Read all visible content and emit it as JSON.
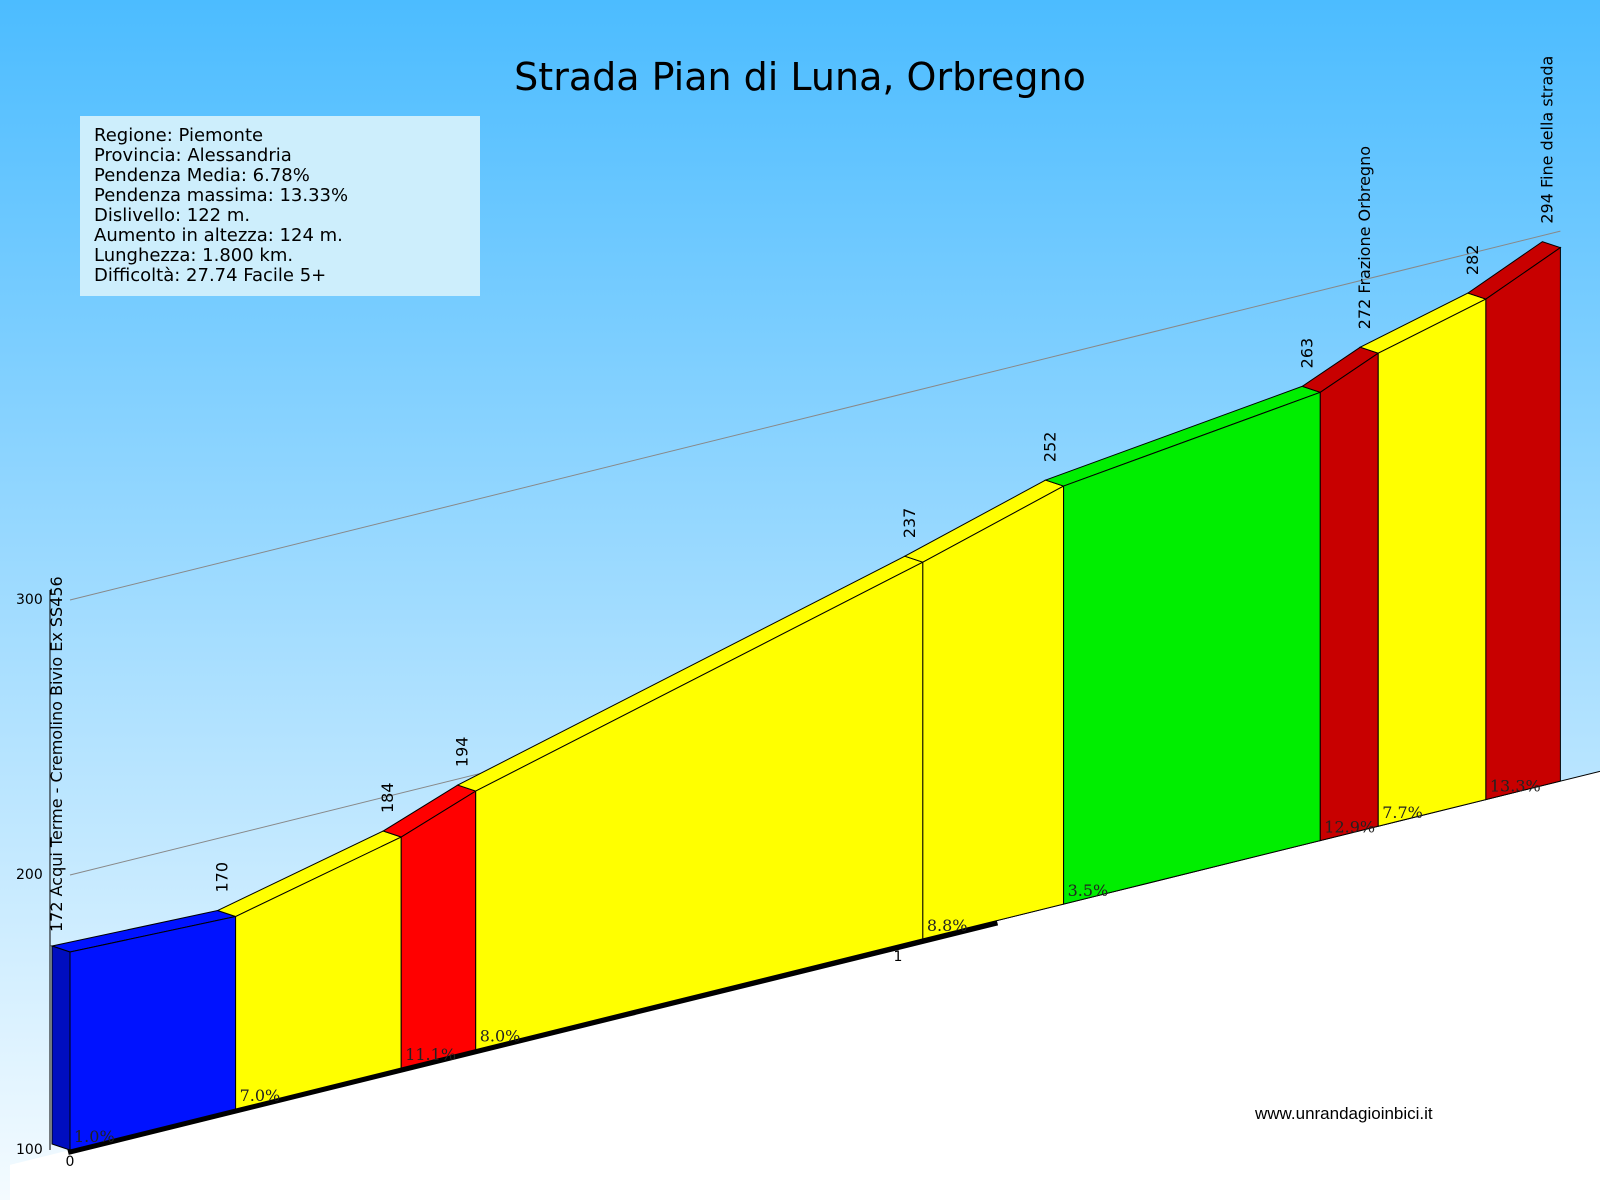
{
  "title": "Strada Pian di Luna, Orbregno",
  "info": [
    "Regione: Piemonte",
    "Provincia: Alessandria",
    "Pendenza Media: 6.78%",
    "Pendenza massima: 13.33%",
    "Dislivello:   122 m.",
    "Aumento in altezza:   124 m.",
    "Lunghezza:  1.800 km.",
    "Difficoltà: 27.74 Facile 5+"
  ],
  "website": "www.unrandagioinbici.it",
  "colors": {
    "sky_top": "#4cbcff",
    "sky_bottom": "#f4fbff",
    "blue": "#0012ff",
    "yellow": "#ffff00",
    "red": "#ff0000",
    "darkred": "#c80000",
    "green": "#00ee00"
  },
  "chart_data": {
    "type": "area",
    "title": "Strada Pian di Luna, Orbregno",
    "y_ticks": [
      "100",
      "200",
      "300"
    ],
    "ylim": [
      100,
      300
    ],
    "x_ticks": [
      "0",
      "1"
    ],
    "points": [
      {
        "label": "172  Acqui Terme - Cremolino Bivio Ex SS456",
        "altitude": 172,
        "pos": 0
      },
      {
        "label": "170",
        "altitude": 170,
        "pos": 0.2
      },
      {
        "label": "184",
        "altitude": 184,
        "pos": 0.4
      },
      {
        "label": "194",
        "altitude": 194,
        "pos": 0.49
      },
      {
        "label": "237",
        "altitude": 237,
        "pos": 1.03
      },
      {
        "label": "252",
        "altitude": 252,
        "pos": 1.2
      },
      {
        "label": "263",
        "altitude": 263,
        "pos": 1.51
      },
      {
        "label": "272 Frazione Orbregno",
        "altitude": 272,
        "pos": 1.58
      },
      {
        "label": "282",
        "altitude": 282,
        "pos": 1.71
      },
      {
        "label": "294 Fine della strada",
        "altitude": 294,
        "pos": 1.8
      }
    ],
    "segments": [
      {
        "gradient": "1.0%",
        "color": "blue"
      },
      {
        "gradient": "7.0%",
        "color": "yellow"
      },
      {
        "gradient": "11.1%",
        "color": "red"
      },
      {
        "gradient": "8.0%",
        "color": "yellow"
      },
      {
        "gradient": "8.8%",
        "color": "yellow"
      },
      {
        "gradient": "3.5%",
        "color": "green"
      },
      {
        "gradient": "12.9%",
        "color": "darkred"
      },
      {
        "gradient": "7.7%",
        "color": "yellow"
      },
      {
        "gradient": "13.3%",
        "color": "darkred"
      }
    ]
  }
}
